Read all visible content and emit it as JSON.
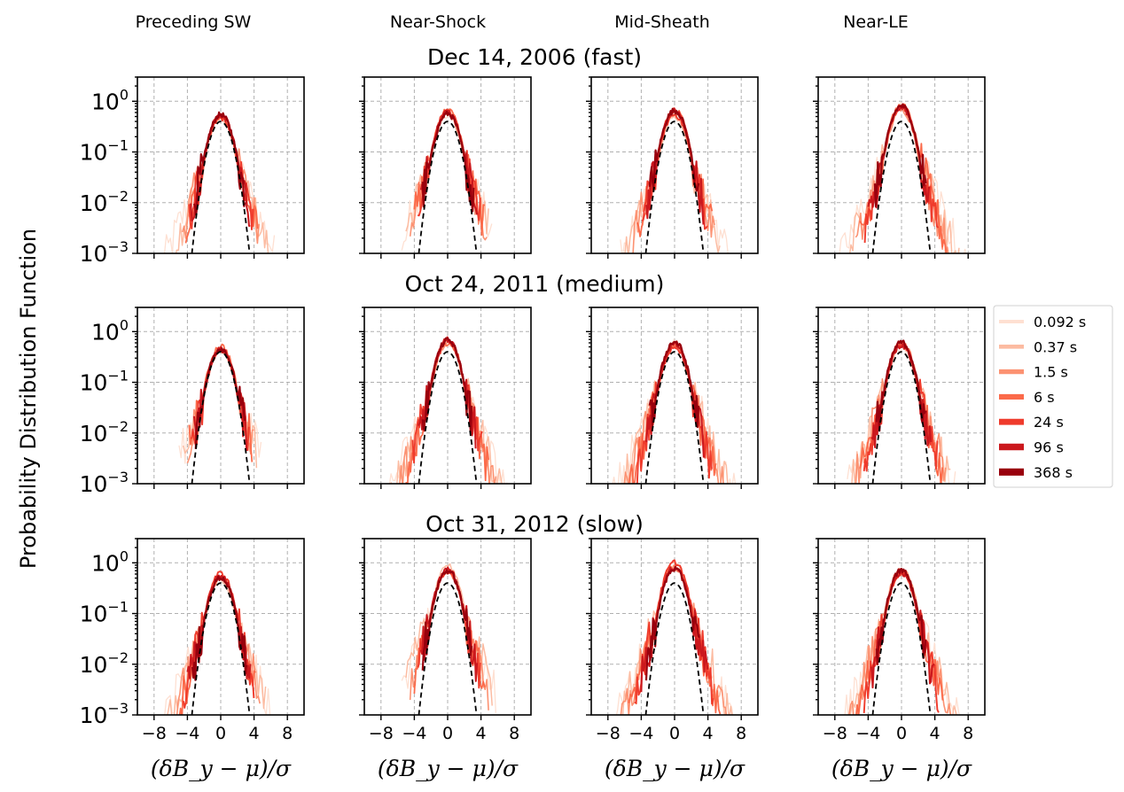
{
  "column_headers": [
    "Preceding SW",
    "Near-Shock",
    "Mid-Sheath",
    "Near-LE"
  ],
  "row_titles": [
    "Dec 14, 2006 (fast)",
    "Oct 24, 2011 (medium)",
    "Oct 31, 2012 (slow)"
  ],
  "ylabel": "Probability Distribution Function",
  "xlabel": "(δB_y − μ)/σ",
  "legend": {
    "items": [
      {
        "label": "0.092 s",
        "color": "#fee0d2"
      },
      {
        "label": "0.37 s",
        "color": "#fcbba1"
      },
      {
        "label": "1.5 s",
        "color": "#fc9272"
      },
      {
        "label": "6 s",
        "color": "#fb6a4a"
      },
      {
        "label": "24 s",
        "color": "#ef3b2c"
      },
      {
        "label": "96 s",
        "color": "#cb181d"
      },
      {
        "label": "368 s",
        "color": "#99000d"
      }
    ]
  },
  "chart_data": {
    "type": "line",
    "layout": "3x4 small multiples",
    "x_ticks": [
      -8,
      -4,
      0,
      4,
      8
    ],
    "x_tick_labels": [
      "−8",
      "−4",
      "0",
      "4",
      "8"
    ],
    "xlim": [
      -10,
      10
    ],
    "y_scale": "log",
    "ylim": [
      0.001,
      3
    ],
    "y_ticks": [
      0.001,
      0.01,
      0.1,
      1
    ],
    "y_tick_labels": [
      {
        "base": "10",
        "exp": "−3"
      },
      {
        "base": "10",
        "exp": "−2"
      },
      {
        "base": "10",
        "exp": "−1"
      },
      {
        "base": "10",
        "exp": "0"
      }
    ],
    "grid": true,
    "reference_curve": "standard Gaussian (black dashed)",
    "series_names": [
      "0.092 s",
      "0.37 s",
      "1.5 s",
      "6 s",
      "24 s",
      "96 s",
      "368 s"
    ],
    "panels": [
      {
        "row": 0,
        "col": 0,
        "peak": 0.5,
        "tail_left": [
          -7,
          -5.5,
          -4.6,
          -4.2,
          -3.8,
          -3.6,
          -3.2
        ],
        "tail_right": [
          6.5,
          5.8,
          4.8,
          4.5,
          4.0,
          3.6,
          3.0
        ]
      },
      {
        "row": 0,
        "col": 1,
        "peak": 0.6,
        "tail_left": [
          -5.5,
          -5.0,
          -4.5,
          -4.0,
          -3.6,
          -3.2,
          -3.0
        ],
        "tail_right": [
          5.5,
          5.0,
          4.8,
          4.5,
          4.0,
          3.6,
          3.2
        ]
      },
      {
        "row": 0,
        "col": 2,
        "peak": 0.6,
        "tail_left": [
          -6.5,
          -6.0,
          -5.0,
          -4.5,
          -3.9,
          -3.4,
          -3.0
        ],
        "tail_right": [
          6.5,
          5.6,
          5.0,
          4.6,
          4.0,
          3.6,
          3.0
        ]
      },
      {
        "row": 0,
        "col": 3,
        "peak": 0.75,
        "tail_left": [
          -7.5,
          -6.5,
          -5.5,
          -5.0,
          -4.4,
          -4.0,
          -3.2
        ],
        "tail_right": [
          8.0,
          7.0,
          6.0,
          5.5,
          4.5,
          3.5,
          3.0
        ]
      },
      {
        "row": 1,
        "col": 0,
        "peak": 0.5,
        "tail_left": [
          -5.0,
          -4.5,
          -4.0,
          -3.8,
          -3.5,
          -3.2,
          -3.0
        ],
        "tail_right": [
          5.0,
          4.5,
          4.2,
          3.8,
          3.5,
          3.2,
          3.0
        ]
      },
      {
        "row": 1,
        "col": 1,
        "peak": 0.65,
        "tail_left": [
          -8.0,
          -7.0,
          -6.0,
          -5.0,
          -4.2,
          -3.5,
          -3.0
        ],
        "tail_right": [
          8.0,
          7.0,
          6.0,
          5.0,
          4.2,
          3.5,
          3.0
        ]
      },
      {
        "row": 1,
        "col": 2,
        "peak": 0.6,
        "tail_left": [
          -8.0,
          -7.0,
          -6.5,
          -5.5,
          -4.5,
          -3.5,
          -3.0
        ],
        "tail_right": [
          8.5,
          7.0,
          6.0,
          5.0,
          4.5,
          3.6,
          3.0
        ]
      },
      {
        "row": 1,
        "col": 3,
        "peak": 0.55,
        "tail_left": [
          -6.5,
          -6.0,
          -5.5,
          -5.0,
          -4.5,
          -3.6,
          -3.0
        ],
        "tail_right": [
          6.5,
          6.0,
          5.5,
          5.0,
          4.4,
          3.6,
          3.0
        ]
      },
      {
        "row": 2,
        "col": 0,
        "peak": 0.55,
        "tail_left": [
          -7.5,
          -6.5,
          -5.5,
          -5.0,
          -4.5,
          -4.0,
          -3.4
        ],
        "tail_right": [
          6.0,
          5.5,
          4.8,
          4.2,
          4.0,
          3.6,
          3.2
        ]
      },
      {
        "row": 2,
        "col": 1,
        "peak": 0.8,
        "tail_left": [
          -5.5,
          -5.0,
          -4.5,
          -4.0,
          -3.6,
          -3.2,
          -3.0
        ],
        "tail_right": [
          6.0,
          5.5,
          5.0,
          4.6,
          4.0,
          3.6,
          3.0
        ]
      },
      {
        "row": 2,
        "col": 2,
        "peak": 0.9,
        "tail_left": [
          -9.0,
          -8.0,
          -6.5,
          -5.5,
          -4.8,
          -4.0,
          -3.4
        ],
        "tail_right": [
          8.5,
          7.5,
          6.5,
          5.5,
          4.8,
          4.0,
          3.0
        ]
      },
      {
        "row": 2,
        "col": 3,
        "peak": 0.75,
        "tail_left": [
          -9.0,
          -8.0,
          -6.5,
          -5.5,
          -4.5,
          -3.6,
          -3.0
        ],
        "tail_right": [
          8.0,
          6.8,
          6.0,
          5.0,
          4.5,
          4.0,
          3.0
        ]
      }
    ]
  }
}
